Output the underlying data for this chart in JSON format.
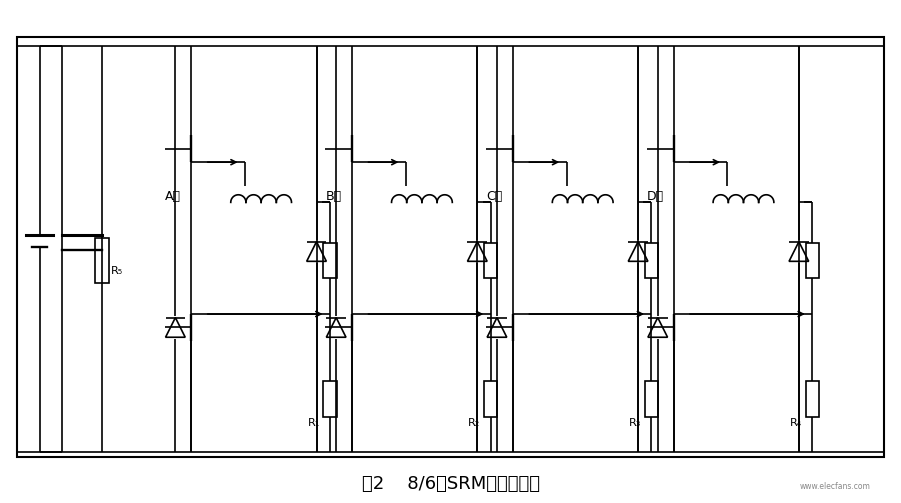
{
  "title": "图2    8/6极SRM电路结构图",
  "title_fontsize": 13,
  "bg_color": "#ffffff",
  "line_color": "#000000",
  "text_color": "#000000",
  "fig_width": 9.01,
  "fig_height": 5.03,
  "dpi": 100,
  "phase_labels": [
    "A相",
    "B相",
    "C相",
    "D相"
  ],
  "resistor_labels": [
    "R₁",
    "R₂",
    "R₃",
    "R₄"
  ],
  "R5_label": "R₅",
  "watermark": "www.elecfans.com"
}
